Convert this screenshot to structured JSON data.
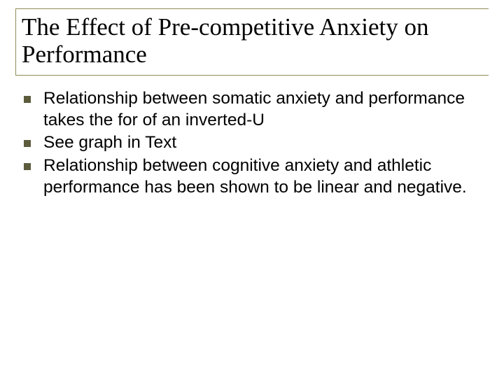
{
  "title": "The Effect of Pre-competitive Anxiety on Performance",
  "bullets": [
    "Relationship between somatic anxiety and performance takes the for of an inverted-U",
    "See graph in Text",
    "Relationship between cognitive anxiety and athletic performance has been shown to be linear and negative."
  ],
  "colors": {
    "border": "#8e8e56",
    "bullet": "#5c5c3d",
    "text": "#000000",
    "background": "#ffffff"
  },
  "fonts": {
    "title_family": "Times New Roman",
    "title_size_pt": 26,
    "body_family": "Arial",
    "body_size_pt": 18
  }
}
